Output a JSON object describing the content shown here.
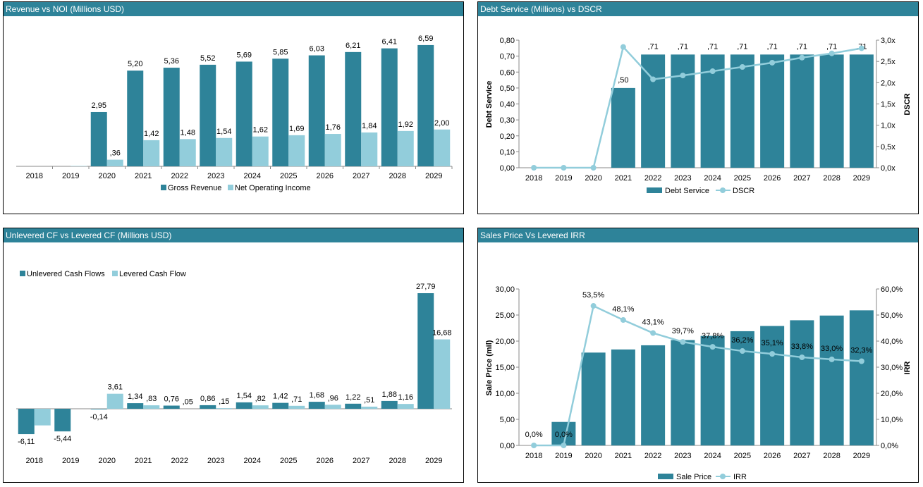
{
  "colors": {
    "dark": "#2e8399",
    "light": "#92cddb",
    "axis": "#888888"
  },
  "panels": {
    "tl": {
      "title": "Revenue vs NOI (Millions USD)"
    },
    "tr": {
      "title": "Debt Service (Millions) vs DSCR"
    },
    "bl": {
      "title": "Unlevered CF vs Levered CF (Millions USD)"
    },
    "br": {
      "title": "Sales Price Vs Levered IRR"
    }
  },
  "chart_data": [
    {
      "type": "bar",
      "title": "Revenue vs NOI (Millions USD)",
      "categories": [
        "2018",
        "2019",
        "2020",
        "2021",
        "2022",
        "2023",
        "2024",
        "2025",
        "2026",
        "2027",
        "2028",
        "2029"
      ],
      "series": [
        {
          "name": "Gross Revenue",
          "values": [
            0,
            0,
            2.95,
            5.2,
            5.36,
            5.52,
            5.69,
            5.85,
            6.03,
            6.21,
            6.41,
            6.59
          ],
          "labels": [
            "",
            "",
            "2,95",
            "5,20",
            "5,36",
            "5,52",
            "5,69",
            "5,85",
            "6,03",
            "6,21",
            "6,41",
            "6,59"
          ]
        },
        {
          "name": "Net Operating Income",
          "values": [
            0,
            0.02,
            0.36,
            1.42,
            1.48,
            1.54,
            1.62,
            1.69,
            1.76,
            1.84,
            1.92,
            2.0
          ],
          "labels": [
            "",
            "",
            ",36",
            "1,42",
            "1,48",
            "1,54",
            "1,62",
            "1,69",
            "1,76",
            "1,84",
            "1,92",
            "2,00"
          ]
        }
      ],
      "ylim": [
        0,
        7.2
      ],
      "legend": "bottom"
    },
    {
      "type": "bar",
      "title": "Debt Service (Millions) vs DSCR",
      "categories": [
        "2018",
        "2019",
        "2020",
        "2021",
        "2022",
        "2023",
        "2024",
        "2025",
        "2026",
        "2027",
        "2028",
        "2029"
      ],
      "series": [
        {
          "name": "Debt Service",
          "type": "bar",
          "values": [
            0,
            0,
            0,
            0.5,
            0.71,
            0.71,
            0.71,
            0.71,
            0.71,
            0.71,
            0.71,
            0.71
          ],
          "labels": [
            "",
            "",
            "",
            ",50",
            ",71",
            ",71",
            ",71",
            ",71",
            ",71",
            ",71",
            ",71",
            ",71"
          ]
        },
        {
          "name": "DSCR",
          "type": "line",
          "axis": "right",
          "values": [
            0,
            0,
            0,
            2.84,
            2.08,
            2.17,
            2.27,
            2.37,
            2.47,
            2.59,
            2.69,
            2.81
          ]
        }
      ],
      "ylabel": "Debt Service",
      "y2label": "DSCR",
      "ylim": [
        0,
        0.8
      ],
      "y2lim": [
        0,
        3.0
      ],
      "yticks": [
        "0,00",
        "0,10",
        "0,20",
        "0,30",
        "0,40",
        "0,50",
        "0,60",
        "0,70",
        "0,80"
      ],
      "y2ticks": [
        "0,0x",
        "0,5x",
        "1,0x",
        "1,5x",
        "2,0x",
        "2,5x",
        "3,0x"
      ],
      "legend": "bottom"
    },
    {
      "type": "bar",
      "title": "Unlevered CF vs Levered CF (Millions USD)",
      "categories": [
        "2018",
        "2019",
        "2020",
        "2021",
        "2022",
        "2023",
        "2024",
        "2025",
        "2026",
        "2027",
        "2028",
        "2029"
      ],
      "series": [
        {
          "name": "Unlevered Cash Flows",
          "values": [
            -6.11,
            -5.44,
            -0.14,
            1.34,
            0.76,
            0.86,
            1.54,
            1.42,
            1.68,
            1.22,
            1.88,
            27.79
          ],
          "labels": [
            "-6,11",
            "-5,44",
            "-0,14",
            "1,34",
            "0,76",
            "0,86",
            "1,54",
            "1,42",
            "1,68",
            "1,22",
            "1,88",
            "27,79"
          ]
        },
        {
          "name": "Levered Cash Flow",
          "values": [
            -4.0,
            0,
            3.61,
            0.83,
            0.05,
            0.15,
            0.82,
            0.71,
            0.96,
            0.51,
            1.16,
            16.68
          ],
          "labels": [
            "",
            "",
            "3,61",
            ",83",
            ",05",
            ",15",
            ",82",
            ",71",
            ",96",
            ",51",
            "1,16",
            "16,68"
          ]
        }
      ],
      "ylim": [
        -7,
        29
      ],
      "legend": "top-left"
    },
    {
      "type": "bar",
      "title": "Sales Price Vs Levered IRR",
      "categories": [
        "2018",
        "2019",
        "2020",
        "2021",
        "2022",
        "2023",
        "2024",
        "2025",
        "2026",
        "2027",
        "2028",
        "2029"
      ],
      "series": [
        {
          "name": "Sale Price",
          "type": "bar",
          "values": [
            0,
            4.5,
            17.8,
            18.4,
            19.2,
            20.2,
            21.0,
            21.9,
            22.9,
            24.0,
            24.9,
            25.9
          ]
        },
        {
          "name": "IRR",
          "type": "line",
          "axis": "right",
          "values": [
            0.0,
            0.0,
            53.5,
            48.1,
            43.1,
            39.7,
            37.8,
            36.2,
            35.1,
            33.8,
            33.0,
            32.3
          ],
          "labels": [
            "0,0%",
            "0,0%",
            "53,5%",
            "48,1%",
            "43,1%",
            "39,7%",
            "37,8%",
            "36,2%",
            "35,1%",
            "33,8%",
            "33,0%",
            "32,3%"
          ]
        }
      ],
      "ylabel": "Sale Price (mil)",
      "y2label": "IRR",
      "ylim": [
        0,
        30
      ],
      "y2lim": [
        0,
        60
      ],
      "yticks": [
        "0,00",
        "5,00",
        "10,00",
        "15,00",
        "20,00",
        "25,00",
        "30,00"
      ],
      "y2ticks": [
        "0,0%",
        "10,0%",
        "20,0%",
        "30,0%",
        "40,0%",
        "50,0%",
        "60,0%"
      ],
      "legend": "bottom"
    }
  ]
}
